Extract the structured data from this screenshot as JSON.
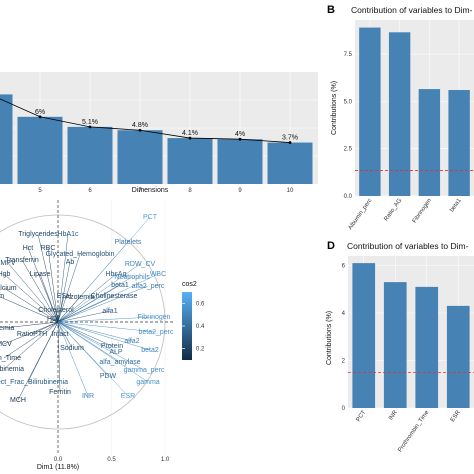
{
  "chart_data": [
    {
      "type": "bar",
      "panel": "",
      "title": "",
      "xlabel": "Dimensions",
      "ylabel": "",
      "categories": [
        "4",
        "5",
        "6",
        "7",
        "8",
        "9",
        "10"
      ],
      "category_labels": [
        "",
        "5",
        "6",
        "7",
        "8",
        "9",
        "10"
      ],
      "values": [
        8.0,
        6.0,
        5.1,
        4.8,
        4.1,
        4.0,
        3.7
      ],
      "data_labels": [
        "8%",
        "6%",
        "5.1%",
        "4.8%",
        "4.1%",
        "4%",
        "3.7%"
      ],
      "ylim": [
        0,
        10
      ],
      "line_overlay": true,
      "bar_color": "#4682B4"
    },
    {
      "type": "bar",
      "panel": "B",
      "title": "Contribution of variables to Dim-",
      "xlabel": "",
      "ylabel": "Contributions (%)",
      "categories": [
        "Albumin_perc",
        "Ratio_AG",
        "Fibrinogen",
        "beta1"
      ],
      "category_labels": [
        "Albumin_perc",
        "Ratio_AG",
        "Fibrinogen",
        "beta1"
      ],
      "values": [
        8.9,
        8.65,
        5.65,
        5.6
      ],
      "yticks": [
        "0.0",
        "2.5",
        "5.0",
        "7.5"
      ],
      "ytick_values": [
        0,
        2.5,
        5.0,
        7.5
      ],
      "ylim": [
        0,
        9.3
      ],
      "reference_line": 1.35,
      "bar_color": "#4682B4",
      "ref_color": "#e0303a"
    },
    {
      "type": "scatter",
      "panel": "",
      "title": "",
      "xlabel": "Dim1 (11.8%)",
      "ylabel": "",
      "xticks": [
        "0.0",
        "0.5",
        "1.0"
      ],
      "legend_title": "cos2",
      "legend_ticks": [
        "0.6",
        "0.4",
        "0.2"
      ],
      "legend_tick_values": [
        0.6,
        0.4,
        0.2
      ],
      "variables": [
        {
          "name": "PCT",
          "cos2": 0.62
        },
        {
          "name": "Triglycerides",
          "cos2": 0.22
        },
        {
          "name": "HbA1c",
          "cos2": 0.3
        },
        {
          "name": "Platelets",
          "cos2": 0.45
        },
        {
          "name": "Hct",
          "cos2": 0.2
        },
        {
          "name": "RBC",
          "cos2": 0.18
        },
        {
          "name": "RDW_CV",
          "cos2": 0.5
        },
        {
          "name": "MPV",
          "cos2": 0.22
        },
        {
          "name": "Glycated_Hemoglobin",
          "cos2": 0.28
        },
        {
          "name": "Transferrin",
          "cos2": 0.18
        },
        {
          "name": "WBC",
          "cos2": 0.55
        },
        {
          "name": "Ab",
          "cos2": 0.25
        },
        {
          "name": "HbsAg",
          "cos2": 0.3
        },
        {
          "name": "Neutrophils",
          "cos2": 0.5
        },
        {
          "name": "Hgb",
          "cos2": 0.18
        },
        {
          "name": "Lipase",
          "cos2": 0.15
        },
        {
          "name": "beta1",
          "cos2": 0.3
        },
        {
          "name": "alfa2_perc",
          "cos2": 0.45
        },
        {
          "name": "Calcium",
          "cos2": 0.15
        },
        {
          "name": "Cholinesterase",
          "cos2": 0.22
        },
        {
          "name": "rum",
          "cos2": 0.15
        },
        {
          "name": "ESH",
          "cos2": 0.2
        },
        {
          "name": "Azotemia",
          "cos2": 0.2
        },
        {
          "name": "alfa1",
          "cos2": 0.3
        },
        {
          "name": "Fibrinogen",
          "cos2": 0.55
        },
        {
          "name": "Cholesterol",
          "cos2": 0.18
        },
        {
          "name": "beta2_perc",
          "cos2": 0.55
        },
        {
          "name": "HDL",
          "cos2": 0.2
        },
        {
          "name": "alfa2",
          "cos2": 0.45
        },
        {
          "name": "ALP",
          "cos2": 0.4
        },
        {
          "name": "beta2",
          "cos2": 0.5
        },
        {
          "name": "inemia",
          "cos2": 0.15
        },
        {
          "name": "RatioPTH",
          "cos2": 0.2
        },
        {
          "name": "Intact",
          "cos2": 0.22
        },
        {
          "name": "MCV",
          "cos2": 0.15
        },
        {
          "name": "Sodium",
          "cos2": 0.22
        },
        {
          "name": "Protein",
          "cos2": 0.3
        },
        {
          "name": "alfa_amylase",
          "cos2": 0.4
        },
        {
          "name": "Bilirubinemia",
          "cos2": 0.18
        },
        {
          "name": "PDW",
          "cos2": 0.35
        },
        {
          "name": "gamma_perc",
          "cos2": 0.55
        },
        {
          "name": "Direct_Frac_Bilirubinemia",
          "cos2": 0.3
        },
        {
          "name": "gamma",
          "cos2": 0.55
        },
        {
          "name": "Ferritin",
          "cos2": 0.2
        },
        {
          "name": "ESR",
          "cos2": 0.6
        },
        {
          "name": "MCH",
          "cos2": 0.15
        },
        {
          "name": "INR",
          "cos2": 0.5
        },
        {
          "name": "astin_Time",
          "cos2": 0.15
        }
      ]
    },
    {
      "type": "bar",
      "panel": "D",
      "title": "Contribution of variables to Dim-",
      "xlabel": "",
      "ylabel": "Contributions (%)",
      "categories": [
        "PCT",
        "INR",
        "Prothrombin_Time",
        "ESR"
      ],
      "category_labels": [
        "PCT",
        "INR",
        "Prothrombin_Time",
        "ESR"
      ],
      "values": [
        6.1,
        5.3,
        5.1,
        4.3
      ],
      "yticks": [
        "0",
        "2",
        "4",
        "6"
      ],
      "ytick_values": [
        0,
        2,
        4,
        6
      ],
      "ylim": [
        0,
        6.4
      ],
      "reference_line": 1.5,
      "bar_color": "#4682B4",
      "ref_color": "#e0303a"
    }
  ]
}
